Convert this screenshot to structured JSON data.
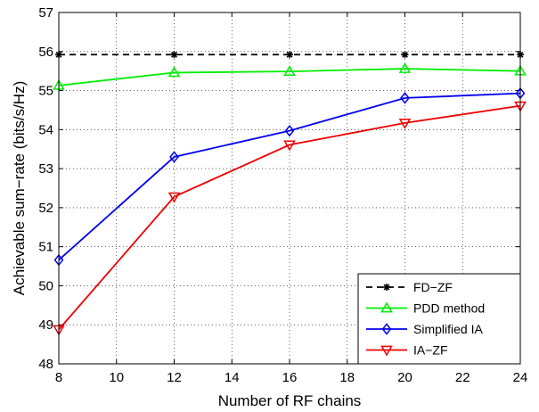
{
  "chart_data": {
    "type": "line",
    "title": "",
    "xlabel": "Number of RF chains",
    "ylabel": "Achievable sum−rate (bits/s/Hz)",
    "xlim": [
      8,
      24
    ],
    "ylim": [
      48,
      57
    ],
    "xticks": [
      8,
      10,
      12,
      14,
      16,
      18,
      20,
      22,
      24
    ],
    "yticks": [
      48,
      49,
      50,
      51,
      52,
      53,
      54,
      55,
      56,
      57
    ],
    "x": [
      8,
      12,
      16,
      20,
      24
    ],
    "grid": true,
    "legend_position": "bottom-right",
    "series": [
      {
        "name": "FD−ZF",
        "color": "#000000",
        "marker": "star",
        "dashed": true,
        "values": [
          55.92,
          55.92,
          55.92,
          55.92,
          55.92
        ]
      },
      {
        "name": "PDD method",
        "color": "#00ee00",
        "marker": "triangle-up",
        "dashed": false,
        "values": [
          55.13,
          55.46,
          55.49,
          55.56,
          55.5
        ]
      },
      {
        "name": "Simplified IA",
        "color": "#0000ee",
        "marker": "diamond",
        "dashed": false,
        "values": [
          50.66,
          53.3,
          53.97,
          54.81,
          54.93
        ]
      },
      {
        "name": "IA−ZF",
        "color": "#ee0000",
        "marker": "triangle-down",
        "dashed": false,
        "values": [
          48.88,
          52.28,
          53.61,
          54.17,
          54.61
        ]
      }
    ]
  }
}
